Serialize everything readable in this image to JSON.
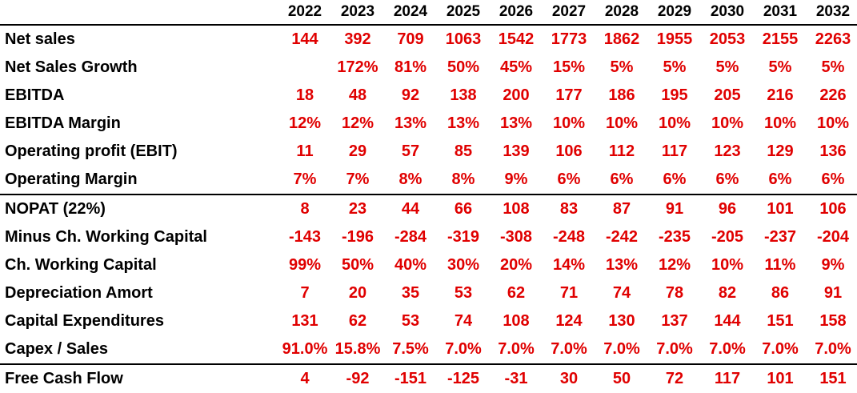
{
  "years": [
    "2022",
    "2023",
    "2024",
    "2025",
    "2026",
    "2027",
    "2028",
    "2029",
    "2030",
    "2031",
    "2032"
  ],
  "rows": [
    {
      "label": "Net sales",
      "values": [
        "144",
        "392",
        "709",
        "1063",
        "1542",
        "1773",
        "1862",
        "1955",
        "2053",
        "2155",
        "2263"
      ]
    },
    {
      "label": "Net Sales Growth",
      "values": [
        "",
        "172%",
        "81%",
        "50%",
        "45%",
        "15%",
        "5%",
        "5%",
        "5%",
        "5%",
        "5%"
      ]
    },
    {
      "label": "EBITDA",
      "values": [
        "18",
        "48",
        "92",
        "138",
        "200",
        "177",
        "186",
        "195",
        "205",
        "216",
        "226"
      ]
    },
    {
      "label": "EBITDA Margin",
      "values": [
        "12%",
        "12%",
        "13%",
        "13%",
        "13%",
        "10%",
        "10%",
        "10%",
        "10%",
        "10%",
        "10%"
      ]
    },
    {
      "label": "Operating profit (EBIT)",
      "values": [
        "11",
        "29",
        "57",
        "85",
        "139",
        "106",
        "112",
        "117",
        "123",
        "129",
        "136"
      ]
    },
    {
      "label": "Operating Margin",
      "values": [
        "7%",
        "7%",
        "8%",
        "8%",
        "9%",
        "6%",
        "6%",
        "6%",
        "6%",
        "6%",
        "6%"
      ]
    },
    {
      "label": "NOPAT (22%)",
      "values": [
        "8",
        "23",
        "44",
        "66",
        "108",
        "83",
        "87",
        "91",
        "96",
        "101",
        "106"
      ]
    },
    {
      "label": "Minus Ch. Working Capital",
      "values": [
        "-143",
        "-196",
        "-284",
        "-319",
        "-308",
        "-248",
        "-242",
        "-235",
        "-205",
        "-237",
        "-204"
      ]
    },
    {
      "label": "Ch. Working Capital",
      "values": [
        "99%",
        "50%",
        "40%",
        "30%",
        "20%",
        "14%",
        "13%",
        "12%",
        "10%",
        "11%",
        "9%"
      ]
    },
    {
      "label": "Depreciation Amort",
      "values": [
        "7",
        "20",
        "35",
        "53",
        "62",
        "71",
        "74",
        "78",
        "82",
        "86",
        "91"
      ]
    },
    {
      "label": "Capital Expenditures",
      "values": [
        "131",
        "62",
        "53",
        "74",
        "108",
        "124",
        "130",
        "137",
        "144",
        "151",
        "158"
      ]
    },
    {
      "label": "Capex / Sales",
      "values": [
        "91.0%",
        "15.8%",
        "7.5%",
        "7.0%",
        "7.0%",
        "7.0%",
        "7.0%",
        "7.0%",
        "7.0%",
        "7.0%",
        "7.0%"
      ]
    },
    {
      "label": "Free Cash Flow",
      "values": [
        "4",
        "-92",
        "-151",
        "-125",
        "-31",
        "30",
        "50",
        "72",
        "117",
        "101",
        "151"
      ]
    }
  ]
}
